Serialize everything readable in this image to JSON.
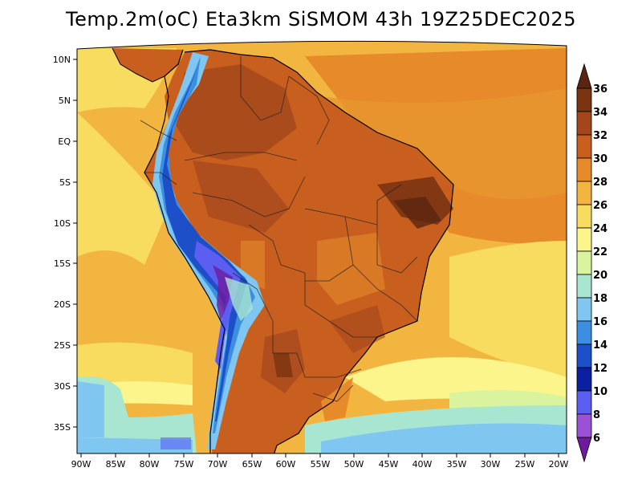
{
  "title": "Temp.2m(oC) Eta3km SiSMOM 43h 19Z25DEC2025",
  "lat_labels": [
    "10N",
    "5N",
    "EQ",
    "5S",
    "10S",
    "15S",
    "20S",
    "25S",
    "30S",
    "35S"
  ],
  "lon_labels": [
    "90W",
    "85W",
    "80W",
    "75W",
    "70W",
    "65W",
    "60W",
    "55W",
    "50W",
    "45W",
    "40W",
    "35W",
    "30W",
    "25W",
    "20W"
  ],
  "colorbar": {
    "labels": [
      "36",
      "34",
      "32",
      "30",
      "28",
      "26",
      "24",
      "22",
      "20",
      "18",
      "16",
      "14",
      "12",
      "10",
      "8",
      "6"
    ],
    "colors_top_to_bottom": [
      "#5a2510",
      "#7a3412",
      "#a3461c",
      "#c85f1f",
      "#e68a2a",
      "#f2b540",
      "#f8dc60",
      "#fbf58c",
      "#d9f39e",
      "#a9e6d2",
      "#7fc7f0",
      "#3c8fe0",
      "#1c4fc8",
      "#0b1fa0",
      "#5c5ef2",
      "#9b50d6",
      "#6e1a9c"
    ]
  },
  "icons": {
    "arrow_top": "colorbar-max-arrow-icon",
    "arrow_bottom": "colorbar-min-arrow-icon"
  }
}
